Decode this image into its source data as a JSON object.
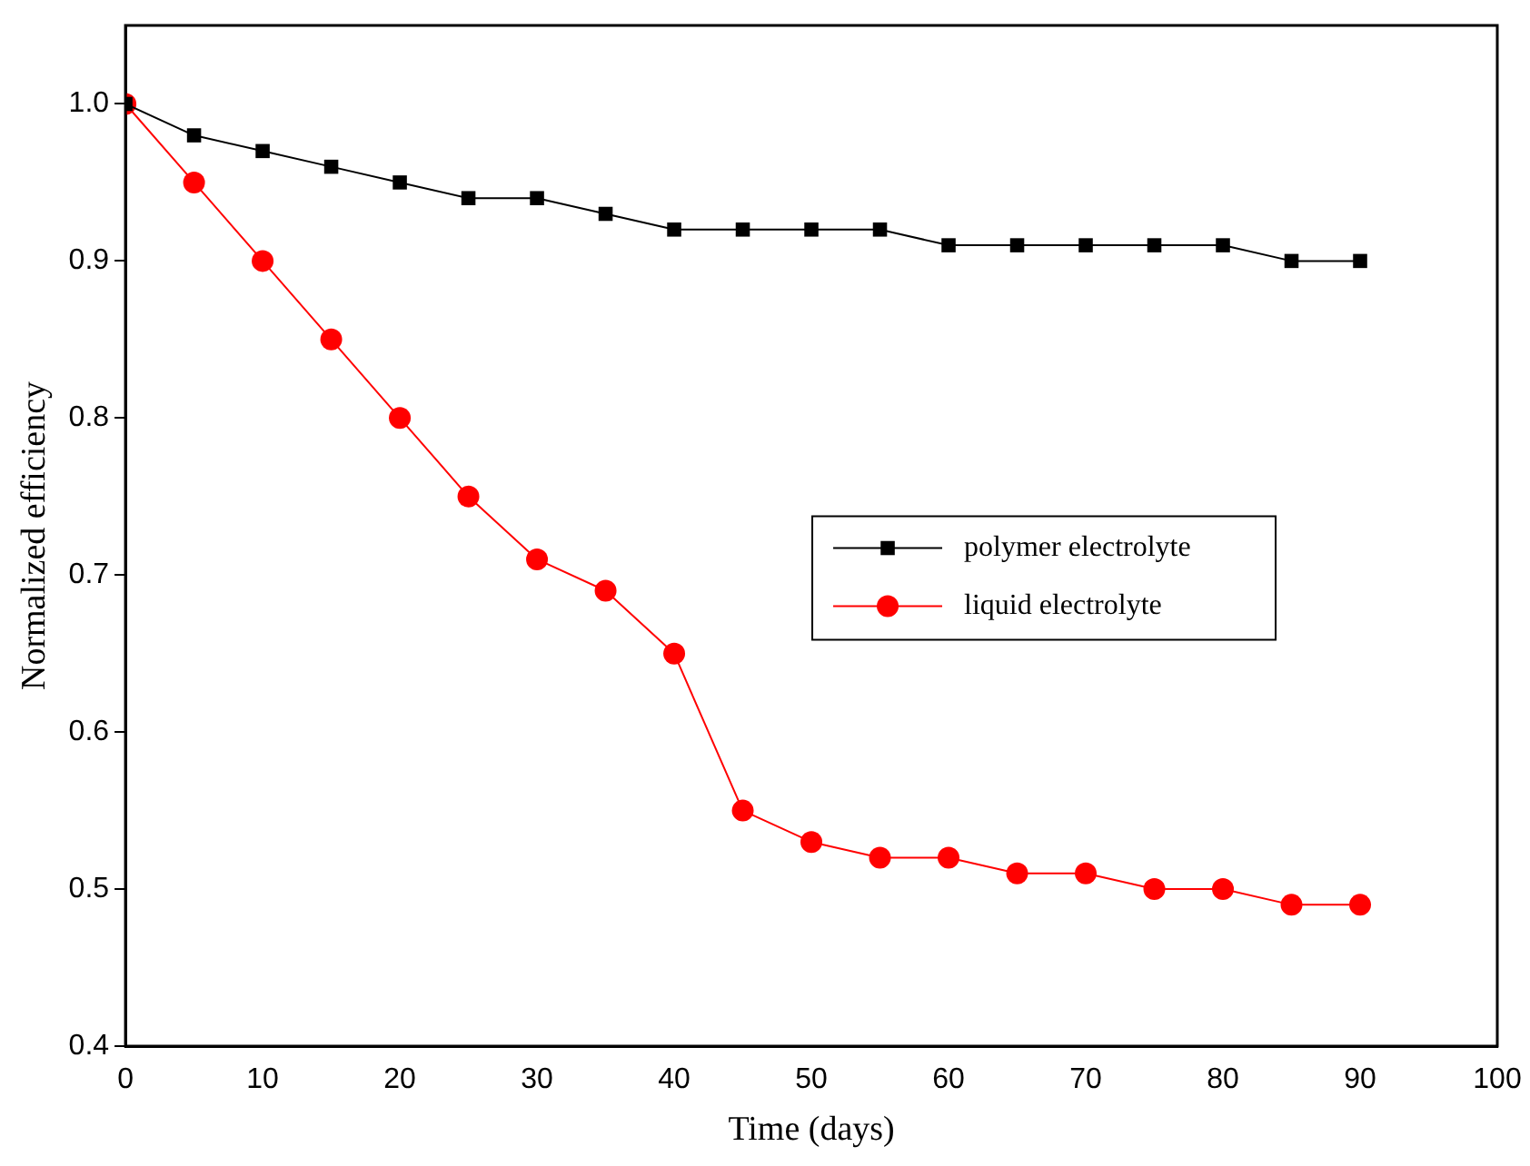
{
  "chart_data": {
    "type": "line",
    "xlabel": "Time (days)",
    "ylabel": "Normalized efficiency",
    "x": [
      0,
      5,
      10,
      15,
      20,
      25,
      30,
      35,
      40,
      45,
      50,
      55,
      60,
      65,
      70,
      75,
      80,
      85,
      90
    ],
    "series": [
      {
        "name": "polymer electrolyte",
        "color": "#000000",
        "marker": "square",
        "values": [
          1.0,
          0.98,
          0.97,
          0.96,
          0.95,
          0.94,
          0.94,
          0.93,
          0.92,
          0.92,
          0.92,
          0.92,
          0.91,
          0.91,
          0.91,
          0.91,
          0.91,
          0.9,
          0.9
        ]
      },
      {
        "name": "liquid electrolyte",
        "color": "#ff0000",
        "marker": "circle",
        "values": [
          1.0,
          0.95,
          0.9,
          0.85,
          0.8,
          0.75,
          0.71,
          0.69,
          0.65,
          0.55,
          0.53,
          0.52,
          0.52,
          0.51,
          0.51,
          0.5,
          0.5,
          0.49,
          0.49
        ]
      }
    ],
    "xlim": [
      0,
      100
    ],
    "xticks": [
      0,
      10,
      20,
      30,
      40,
      50,
      60,
      70,
      80,
      90,
      100
    ],
    "ylim": [
      0.4,
      1.05
    ],
    "yticks": [
      {
        "value": 0.4,
        "label": "0.4"
      },
      {
        "value": 0.5,
        "label": "0.5"
      },
      {
        "value": 0.6,
        "label": "0.6"
      },
      {
        "value": 0.7,
        "label": "0.7"
      },
      {
        "value": 0.8,
        "label": "0.8"
      },
      {
        "value": 0.9,
        "label": "0.9"
      },
      {
        "value": 1.0,
        "label": "1.0"
      }
    ],
    "grid": false,
    "legend": "right",
    "line_style": "solid"
  }
}
